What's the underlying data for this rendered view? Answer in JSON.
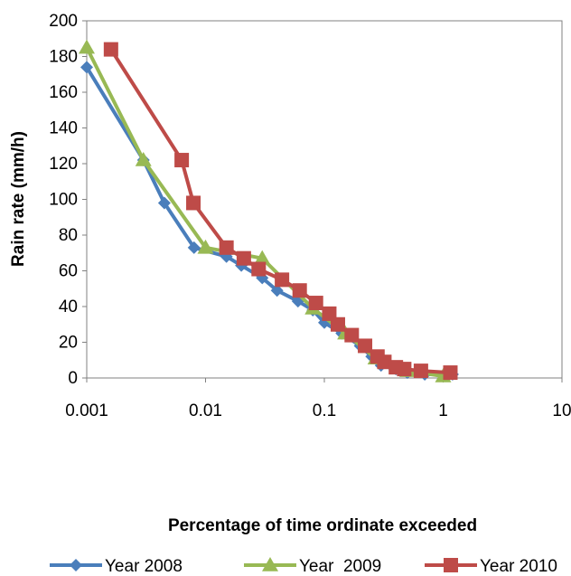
{
  "chart_data": {
    "type": "line",
    "x_scale": "log",
    "xlim": [
      0.001,
      10
    ],
    "ylim": [
      0,
      200
    ],
    "x_ticks": [
      "0.001",
      "0.01",
      "0.1",
      "1",
      "10"
    ],
    "y_ticks": [
      "0",
      "20",
      "40",
      "60",
      "80",
      "100",
      "120",
      "140",
      "160",
      "180",
      "200"
    ],
    "xlabel": "Percentage of time ordinate exceeded",
    "ylabel": "Rain rate (mm/h)",
    "grid": false,
    "legend_position": "bottom",
    "series": [
      {
        "name": "Year 2008",
        "color": "#4a7ebb",
        "marker": "diamond",
        "points": [
          [
            0.001,
            174
          ],
          [
            0.003,
            122
          ],
          [
            0.0045,
            98
          ],
          [
            0.008,
            73
          ],
          [
            0.015,
            68
          ],
          [
            0.02,
            63
          ],
          [
            0.03,
            56
          ],
          [
            0.04,
            49
          ],
          [
            0.06,
            43
          ],
          [
            0.08,
            38
          ],
          [
            0.1,
            31
          ],
          [
            0.14,
            25
          ],
          [
            0.2,
            18
          ],
          [
            0.25,
            12
          ],
          [
            0.3,
            7
          ],
          [
            0.4,
            5
          ],
          [
            0.5,
            3
          ],
          [
            0.7,
            2
          ],
          [
            1.2,
            2
          ]
        ]
      },
      {
        "name": "Year  2009",
        "color": "#98b954",
        "marker": "triangle",
        "points": [
          [
            0.001,
            185
          ],
          [
            0.003,
            122
          ],
          [
            0.01,
            73
          ],
          [
            0.03,
            67
          ],
          [
            0.08,
            39
          ],
          [
            0.15,
            25
          ],
          [
            0.27,
            11
          ],
          [
            0.5,
            4
          ],
          [
            1.0,
            1
          ]
        ]
      },
      {
        "name": "Year 2010",
        "color": "#be4b48",
        "marker": "square",
        "points": [
          [
            0.0016,
            184
          ],
          [
            0.0063,
            122
          ],
          [
            0.0079,
            98
          ],
          [
            0.015,
            73
          ],
          [
            0.021,
            67
          ],
          [
            0.028,
            61
          ],
          [
            0.044,
            55
          ],
          [
            0.062,
            49
          ],
          [
            0.085,
            42
          ],
          [
            0.11,
            36
          ],
          [
            0.13,
            30
          ],
          [
            0.17,
            24
          ],
          [
            0.22,
            18
          ],
          [
            0.28,
            12
          ],
          [
            0.32,
            9
          ],
          [
            0.4,
            6
          ],
          [
            0.47,
            5
          ],
          [
            0.65,
            4
          ],
          [
            1.15,
            3
          ]
        ]
      }
    ]
  }
}
